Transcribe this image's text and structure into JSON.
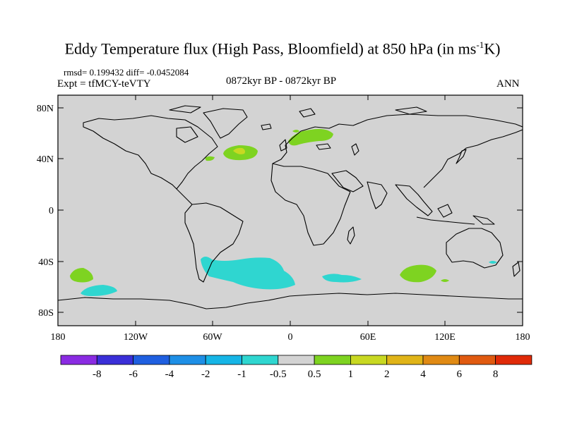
{
  "title": {
    "main": "Eddy Temperature flux (High Pass, Bloomfield) at 850 hPa (in ms",
    "unit_sup": "-1",
    "unit_tail": "K)"
  },
  "stats": "rmsd= 0.199432 diff= -0.0452084",
  "expt": "Expt = tfMCY-teVTY",
  "period": "0872kyr BP - 0872kyr BP",
  "season": "ANN",
  "map": {
    "background_color": "#d3d3d3",
    "lat_labels": [
      "80N",
      "40N",
      "0",
      "40S",
      "80S"
    ],
    "lon_labels": [
      "180",
      "120W",
      "60W",
      "0",
      "60E",
      "120E",
      "180"
    ]
  },
  "colorbar": {
    "colors": [
      "#8a2be2",
      "#3a2fd8",
      "#1f5fe0",
      "#1e8fe6",
      "#16b5e6",
      "#2fd6d0",
      "#d3d3d3",
      "#7ed321",
      "#c8d822",
      "#e0b418",
      "#e08a14",
      "#e05a10",
      "#e02a08"
    ],
    "labels": [
      "-8",
      "-6",
      "-4",
      "-2",
      "-1",
      "-0.5",
      "0.5",
      "1",
      "2",
      "4",
      "6",
      "8"
    ]
  }
}
